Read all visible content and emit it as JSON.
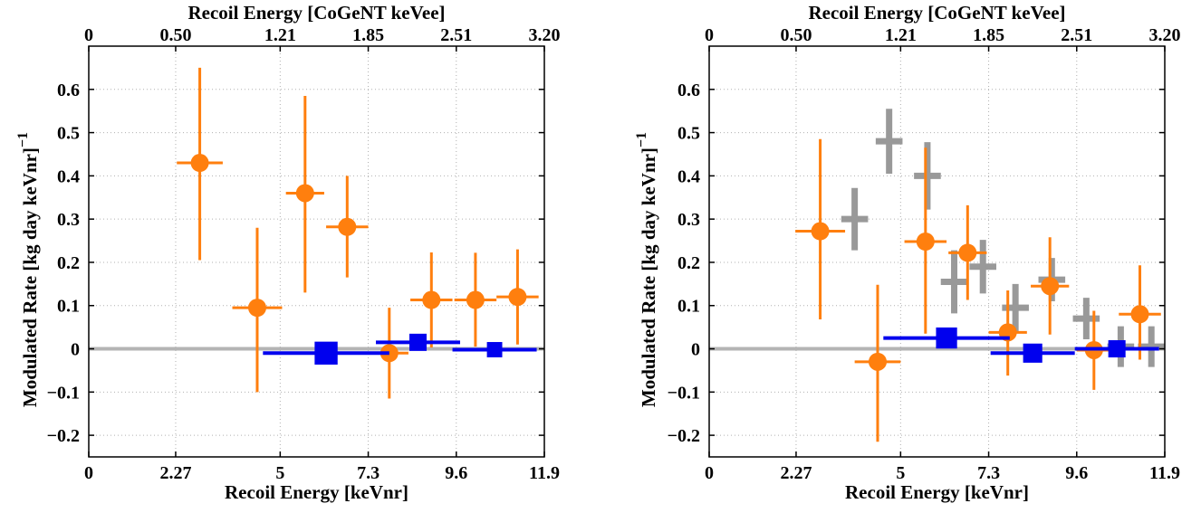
{
  "chart_data": [
    {
      "type": "scatter",
      "xlabel": "Recoil Energy [keVnr]",
      "x2label": "Recoil Energy [CoGeNT keVee]",
      "ylabel": "Modulated Rate [kg day keVnr]",
      "ylabel_superscript": "−1",
      "xlim": [
        0,
        11.9
      ],
      "ylim": [
        -0.25,
        0.7
      ],
      "x_ticks": [
        0,
        2.27,
        5,
        7.3,
        9.6,
        11.9
      ],
      "x_tick_labels": [
        "0",
        "2.27",
        "5",
        "7.3",
        "9.6",
        "11.9"
      ],
      "x2_tick_labels": [
        "0",
        "0.50",
        "1.21",
        "1.85",
        "2.51",
        "3.20"
      ],
      "y_ticks": [
        -0.2,
        -0.1,
        0,
        0.1,
        0.2,
        0.3,
        0.4,
        0.5,
        0.6
      ],
      "y_tick_labels": [
        "−0.2",
        "−0.1",
        "0",
        "0.1",
        "0.2",
        "0.3",
        "0.4",
        "0.5",
        "0.6"
      ],
      "grid": true,
      "zero_line": true,
      "colors": {
        "orange": "#ff7f0e",
        "blue": "#0000ee",
        "gray": "#999999",
        "zero": "#b4b4b4"
      },
      "series": [
        {
          "marker": "circle",
          "color": "#ff7f0e",
          "points": [
            {
              "x": 2.9,
              "y": 0.43,
              "xerr": 0.6,
              "ylo": 0.205,
              "yhi": 0.65
            },
            {
              "x": 4.4,
              "y": 0.095,
              "xerr": 0.65,
              "ylo": -0.1,
              "yhi": 0.28
            },
            {
              "x": 5.65,
              "y": 0.36,
              "xerr": 0.5,
              "ylo": 0.13,
              "yhi": 0.585
            },
            {
              "x": 6.75,
              "y": 0.282,
              "xerr": 0.55,
              "ylo": 0.165,
              "yhi": 0.4
            },
            {
              "x": 7.85,
              "y": -0.01,
              "xerr": 0.5,
              "ylo": -0.115,
              "yhi": 0.095
            },
            {
              "x": 8.95,
              "y": 0.113,
              "xerr": 0.55,
              "ylo": 0.003,
              "yhi": 0.223
            },
            {
              "x": 10.1,
              "y": 0.113,
              "xerr": 0.55,
              "ylo": 0.005,
              "yhi": 0.222
            },
            {
              "x": 11.2,
              "y": 0.12,
              "xerr": 0.55,
              "ylo": 0.01,
              "yhi": 0.23
            }
          ]
        },
        {
          "marker": "square",
          "color": "#0000ee",
          "points": [
            {
              "x": 6.2,
              "y": -0.01,
              "xerr": 1.65,
              "size": 0.6
            },
            {
              "x": 8.6,
              "y": 0.015,
              "xerr": 1.1,
              "size": 0.45
            },
            {
              "x": 10.6,
              "y": -0.002,
              "xerr": 1.1,
              "size": 0.4
            }
          ]
        }
      ]
    },
    {
      "type": "scatter",
      "xlabel": "Recoil Energy [keVnr]",
      "x2label": "Recoil Energy [CoGeNT keVee]",
      "ylabel": "Modulated Rate [kg day keVnr]",
      "ylabel_superscript": "−1",
      "xlim": [
        0,
        11.9
      ],
      "ylim": [
        -0.25,
        0.7
      ],
      "x_ticks": [
        0,
        2.27,
        5,
        7.3,
        9.6,
        11.9
      ],
      "x_tick_labels": [
        "0",
        "2.27",
        "5",
        "7.3",
        "9.6",
        "11.9"
      ],
      "x2_tick_labels": [
        "0",
        "0.50",
        "1.21",
        "1.85",
        "2.51",
        "3.20"
      ],
      "y_ticks": [
        -0.2,
        -0.1,
        0,
        0.1,
        0.2,
        0.3,
        0.4,
        0.5,
        0.6
      ],
      "y_tick_labels": [
        "−0.2",
        "−0.1",
        "0",
        "0.1",
        "0.2",
        "0.3",
        "0.4",
        "0.5",
        "0.6"
      ],
      "grid": true,
      "zero_line": true,
      "colors": {
        "orange": "#ff7f0e",
        "blue": "#0000ee",
        "gray": "#999999",
        "zero": "#b4b4b4"
      },
      "series": [
        {
          "marker": "cross",
          "color": "#999999",
          "points": [
            {
              "x": 3.8,
              "y": 0.3,
              "xerr": 0.35,
              "ylo": 0.228,
              "yhi": 0.372
            },
            {
              "x": 4.7,
              "y": 0.48,
              "xerr": 0.35,
              "ylo": 0.405,
              "yhi": 0.555
            },
            {
              "x": 5.7,
              "y": 0.4,
              "xerr": 0.35,
              "ylo": 0.322,
              "yhi": 0.478
            },
            {
              "x": 6.4,
              "y": 0.155,
              "xerr": 0.35,
              "ylo": 0.082,
              "yhi": 0.228
            },
            {
              "x": 7.15,
              "y": 0.19,
              "xerr": 0.35,
              "ylo": 0.128,
              "yhi": 0.252
            },
            {
              "x": 8.0,
              "y": 0.095,
              "xerr": 0.35,
              "ylo": 0.04,
              "yhi": 0.15
            },
            {
              "x": 8.95,
              "y": 0.16,
              "xerr": 0.35,
              "ylo": 0.11,
              "yhi": 0.21
            },
            {
              "x": 9.85,
              "y": 0.07,
              "xerr": 0.35,
              "ylo": 0.022,
              "yhi": 0.118
            },
            {
              "x": 10.75,
              "y": 0.005,
              "xerr": 0.35,
              "ylo": -0.042,
              "yhi": 0.052
            },
            {
              "x": 11.55,
              "y": 0.005,
              "xerr": 0.35,
              "ylo": -0.042,
              "yhi": 0.052
            }
          ]
        },
        {
          "marker": "circle",
          "color": "#ff7f0e",
          "points": [
            {
              "x": 2.9,
              "y": 0.272,
              "xerr": 0.65,
              "ylo": 0.068,
              "yhi": 0.485
            },
            {
              "x": 4.4,
              "y": -0.03,
              "xerr": 0.6,
              "ylo": -0.215,
              "yhi": 0.148
            },
            {
              "x": 5.65,
              "y": 0.248,
              "xerr": 0.55,
              "ylo": 0.035,
              "yhi": 0.465
            },
            {
              "x": 6.75,
              "y": 0.222,
              "xerr": 0.5,
              "ylo": 0.113,
              "yhi": 0.332
            },
            {
              "x": 7.8,
              "y": 0.038,
              "xerr": 0.5,
              "ylo": -0.062,
              "yhi": 0.135
            },
            {
              "x": 8.9,
              "y": 0.145,
              "xerr": 0.5,
              "ylo": 0.033,
              "yhi": 0.258
            },
            {
              "x": 10.05,
              "y": -0.003,
              "xerr": 0.45,
              "ylo": -0.095,
              "yhi": 0.088
            },
            {
              "x": 11.25,
              "y": 0.08,
              "xerr": 0.55,
              "ylo": -0.025,
              "yhi": 0.193
            }
          ]
        },
        {
          "marker": "square",
          "color": "#0000ee",
          "points": [
            {
              "x": 6.2,
              "y": 0.025,
              "xerr": 1.65,
              "size": 0.55
            },
            {
              "x": 8.45,
              "y": -0.01,
              "xerr": 1.1,
              "size": 0.5
            },
            {
              "x": 10.65,
              "y": 0.0,
              "xerr": 1.1,
              "size": 0.45
            }
          ]
        }
      ]
    }
  ]
}
